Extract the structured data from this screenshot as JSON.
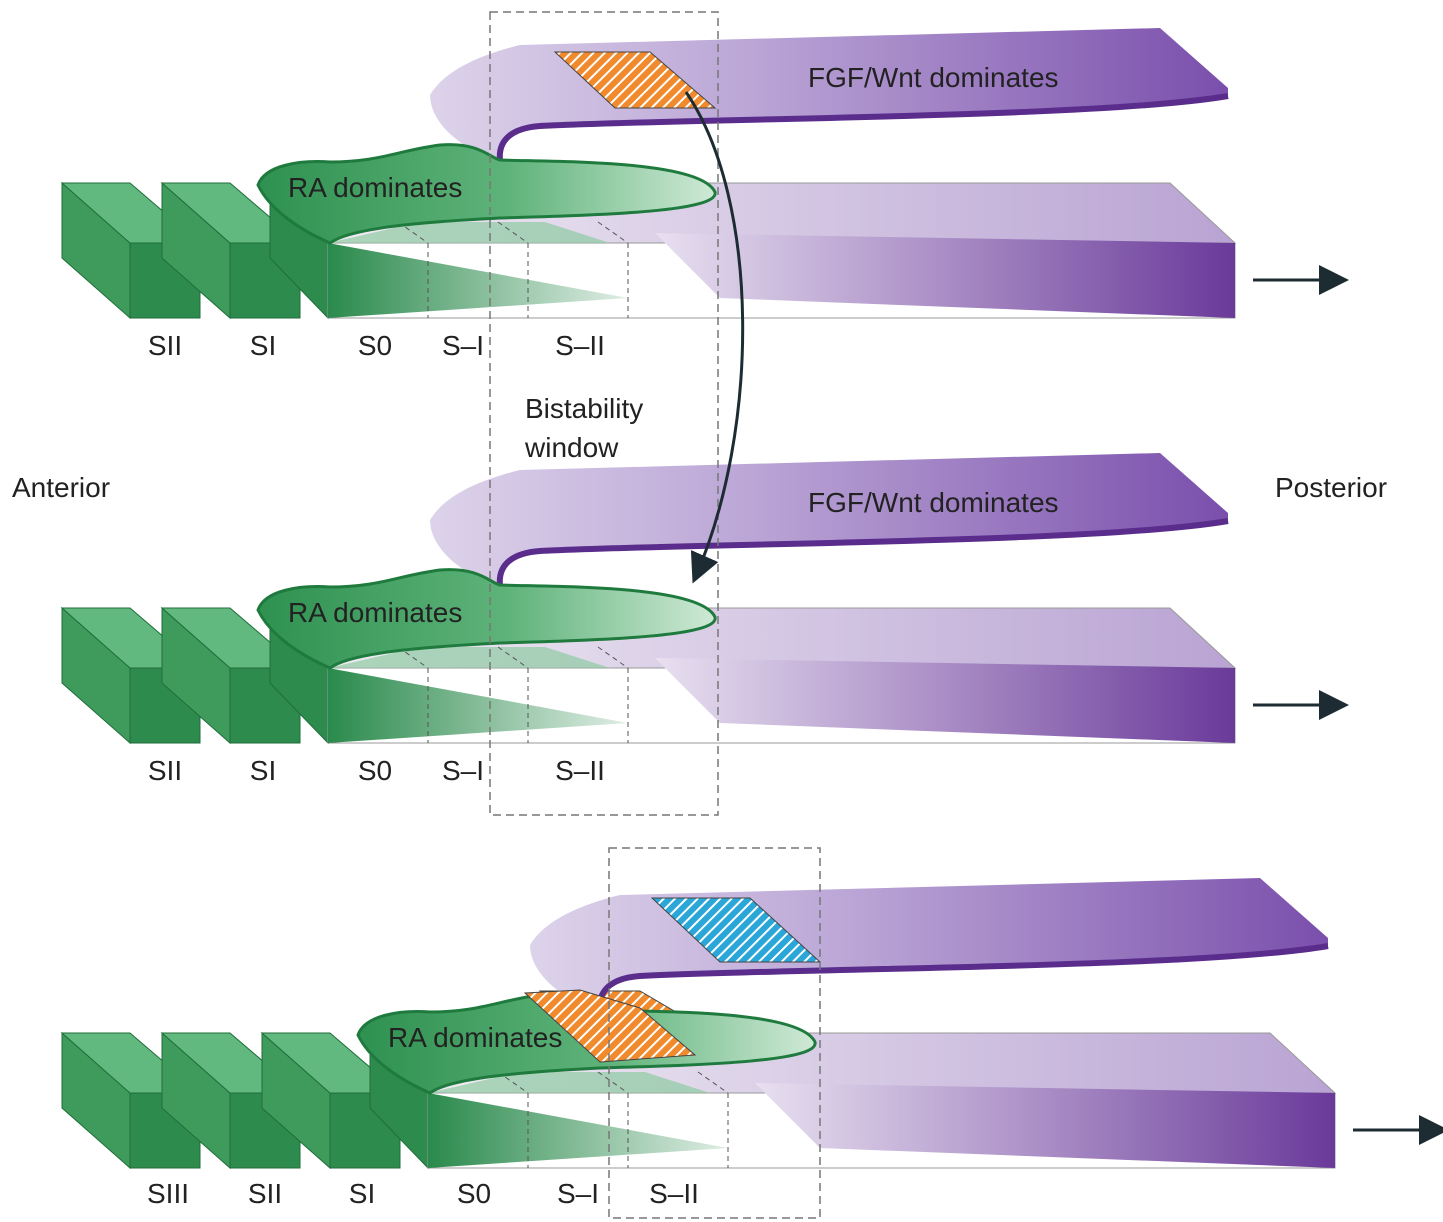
{
  "side_labels": {
    "anterior": "Anterior",
    "posterior": "Posterior"
  },
  "window_label": [
    "Bistability",
    "window"
  ],
  "panels": [
    {
      "fgf_label": "FGF/Wnt dominates",
      "ra_label": "RA dominates",
      "segments": [
        "SII",
        "SI",
        "S0",
        "S–I",
        "S–II"
      ]
    },
    {
      "fgf_label": "FGF/Wnt dominates",
      "ra_label": "RA dominates",
      "segments": [
        "SII",
        "SI",
        "S0",
        "S–I",
        "S–II"
      ]
    },
    {
      "ra_label": "RA dominates",
      "segments": [
        "SIII",
        "SII",
        "SI",
        "S0",
        "S–I",
        "S–II"
      ]
    }
  ]
}
